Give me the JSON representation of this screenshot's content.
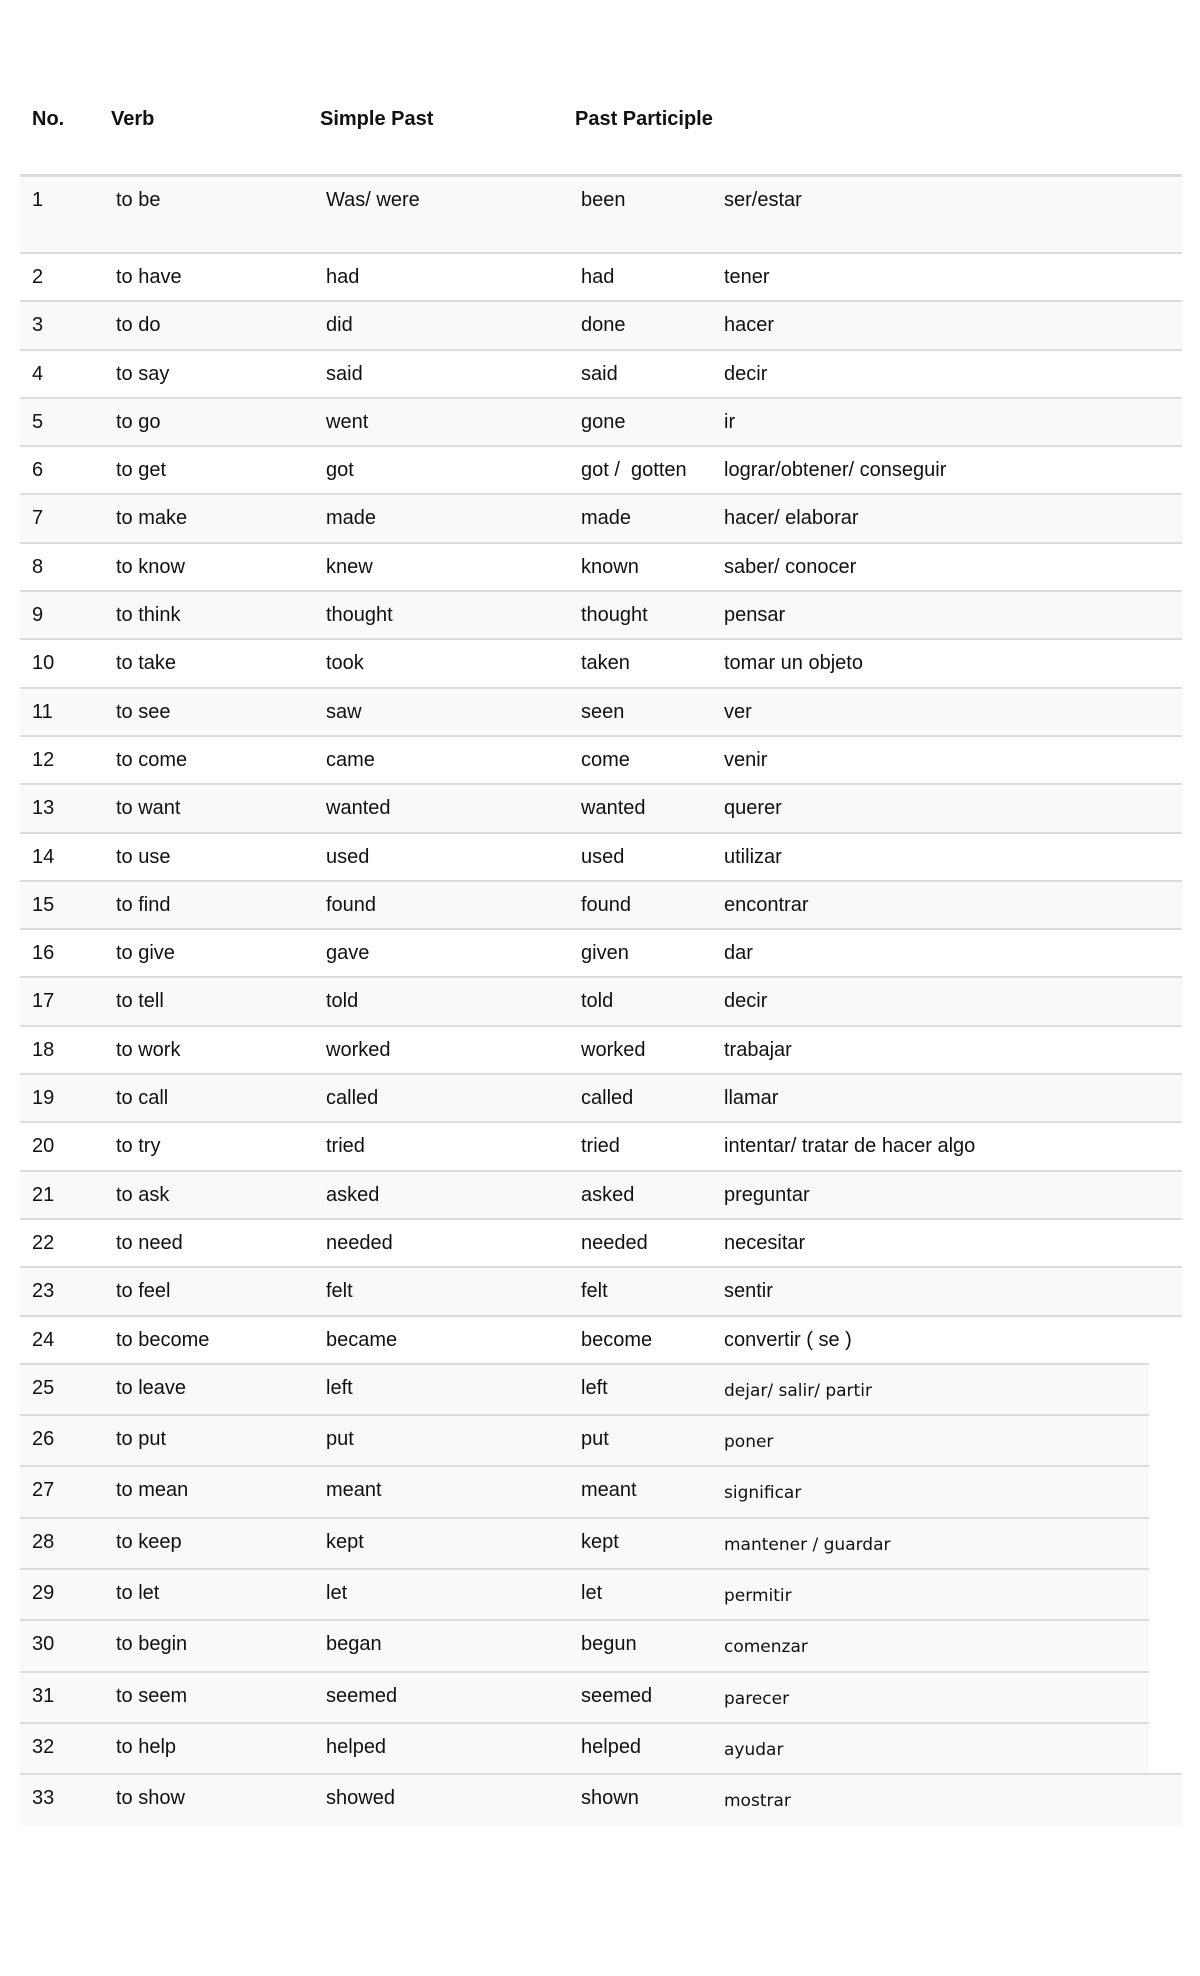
{
  "headers": {
    "no": "No.",
    "verb": "Verb",
    "simple_past": "Simple Past",
    "past_participle": "Past Participle"
  },
  "rows": [
    {
      "no": "1",
      "verb": "to be",
      "past": "Was/ were",
      "pp": "been",
      "es": "ser/estar"
    },
    {
      "no": "2",
      "verb": "to have",
      "past": "had",
      "pp": "had",
      "es": "tener"
    },
    {
      "no": "3",
      "verb": "to do",
      "past": "did",
      "pp": "done",
      "es": "hacer"
    },
    {
      "no": "4",
      "verb": "to say",
      "past": "said",
      "pp": "said",
      "es": "decir"
    },
    {
      "no": "5",
      "verb": "to go",
      "past": "went",
      "pp": "gone",
      "es": "ir"
    },
    {
      "no": "6",
      "verb": "to get",
      "past": "got",
      "pp": "got /  gotten",
      "es": "lograr/obtener/ conseguir"
    },
    {
      "no": "7",
      "verb": "to make",
      "past": "made",
      "pp": "made",
      "es": "hacer/ elaborar"
    },
    {
      "no": "8",
      "verb": "to know",
      "past": "knew",
      "pp": "known",
      "es": "saber/ conocer"
    },
    {
      "no": "9",
      "verb": "to think",
      "past": "thought",
      "pp": "thought",
      "es": "pensar"
    },
    {
      "no": "10",
      "verb": "to take",
      "past": "took",
      "pp": "taken",
      "es": "tomar un objeto"
    },
    {
      "no": "11",
      "verb": "to see",
      "past": "saw",
      "pp": "seen",
      "es": "ver"
    },
    {
      "no": "12",
      "verb": "to come",
      "past": "came",
      "pp": "come",
      "es": "venir"
    },
    {
      "no": "13",
      "verb": "to want",
      "past": "wanted",
      "pp": "wanted",
      "es": "querer"
    },
    {
      "no": "14",
      "verb": "to use",
      "past": "used",
      "pp": "used",
      "es": "utilizar"
    },
    {
      "no": "15",
      "verb": "to find",
      "past": "found",
      "pp": "found",
      "es": "encontrar"
    },
    {
      "no": "16",
      "verb": "to give",
      "past": "gave",
      "pp": "given",
      "es": "dar"
    },
    {
      "no": "17",
      "verb": "to tell",
      "past": "told",
      "pp": "told",
      "es": "decir"
    },
    {
      "no": "18",
      "verb": "to work",
      "past": "worked",
      "pp": "worked",
      "es": "trabajar"
    },
    {
      "no": "19",
      "verb": "to call",
      "past": "called",
      "pp": "called",
      "es": "llamar"
    },
    {
      "no": "20",
      "verb": "to try",
      "past": "tried",
      "pp": "tried",
      "es": "intentar/ tratar de hacer algo"
    },
    {
      "no": "21",
      "verb": "to ask",
      "past": "asked",
      "pp": "asked",
      "es": "preguntar"
    },
    {
      "no": "22",
      "verb": "to need",
      "past": "needed",
      "pp": "needed",
      "es": "necesitar"
    },
    {
      "no": "23",
      "verb": "to feel",
      "past": "felt",
      "pp": "felt",
      "es": "sentir"
    },
    {
      "no": "24",
      "verb": "to become",
      "past": "became",
      "pp": "become",
      "es": "convertir ( se )"
    },
    {
      "no": "25",
      "verb": "to leave",
      "past": "left",
      "pp": "left",
      "es": "dejar/ salir/ partir"
    },
    {
      "no": "26",
      "verb": "to put",
      "past": "put",
      "pp": "put",
      "es": "poner"
    },
    {
      "no": "27",
      "verb": "to mean",
      "past": "meant",
      "pp": "meant",
      "es": "significar"
    },
    {
      "no": "28",
      "verb": "to keep",
      "past": "kept",
      "pp": "kept",
      "es": "mantener / guardar"
    },
    {
      "no": "29",
      "verb": "to let",
      "past": "let",
      "pp": "let",
      "es": "permitir"
    },
    {
      "no": "30",
      "verb": "to begin",
      "past": "began",
      "pp": "begun",
      "es": "comenzar"
    },
    {
      "no": "31",
      "verb": "to seem",
      "past": "seemed",
      "pp": "seemed",
      "es": "parecer"
    },
    {
      "no": "32",
      "verb": "to help",
      "past": "helped",
      "pp": "helped",
      "es": "ayudar"
    },
    {
      "no": "33",
      "verb": "to show",
      "past": "showed",
      "pp": "shown",
      "es": "mostrar"
    }
  ]
}
